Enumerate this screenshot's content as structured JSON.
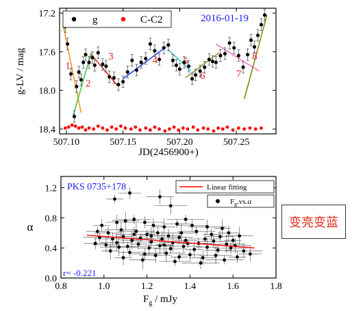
{
  "charts": [
    {
      "chart_data": {
        "type": "scatter",
        "xlabel": "JD(2456900+)",
        "ylabel": "g-LV / mag",
        "xlim": [
          507.094,
          507.285
        ],
        "ylim": [
          18.45,
          17.15
        ],
        "y_inverted": true,
        "xticks": [
          "507.10",
          "507.15",
          "507.20",
          "507.25"
        ],
        "xtick_values": [
          507.1,
          507.15,
          507.2,
          507.25
        ],
        "yticks": [
          "17.2",
          "17.6",
          "18.0",
          "18.4"
        ],
        "ytick_values": [
          17.2,
          17.6,
          18.0,
          18.4
        ],
        "annotation": "2016-01-19",
        "annotation_color": "#1a1aff",
        "legend": [
          {
            "name": "g",
            "color": "#000000"
          },
          {
            "name": "C-C2",
            "color": "#ff0000"
          }
        ],
        "series": [
          {
            "name": "g",
            "color": "#000000",
            "points": [
              [
                507.099,
                17.34
              ],
              [
                507.101,
                17.52
              ],
              [
                507.104,
                17.83
              ],
              [
                507.107,
                18.27
              ],
              [
                507.109,
                17.96
              ],
              [
                507.111,
                17.81
              ],
              [
                507.113,
                17.89
              ],
              [
                507.115,
                17.71
              ],
              [
                507.117,
                17.63
              ],
              [
                507.12,
                17.71
              ],
              [
                507.123,
                17.66
              ],
              [
                507.125,
                17.74
              ],
              [
                507.128,
                17.61
              ],
              [
                507.132,
                17.73
              ],
              [
                507.135,
                17.75
              ],
              [
                507.138,
                17.86
              ],
              [
                507.142,
                17.87
              ],
              [
                507.146,
                17.94
              ],
              [
                507.15,
                17.91
              ],
              [
                507.154,
                17.81
              ],
              [
                507.158,
                17.69
              ],
              [
                507.162,
                17.79
              ],
              [
                507.166,
                17.71
              ],
              [
                507.17,
                17.67
              ],
              [
                507.174,
                17.52
              ],
              [
                507.178,
                17.59
              ],
              [
                507.182,
                17.68
              ],
              [
                507.186,
                17.56
              ],
              [
                507.19,
                17.53
              ],
              [
                507.194,
                17.69
              ],
              [
                507.197,
                17.74
              ],
              [
                507.2,
                17.78
              ],
              [
                507.204,
                17.71
              ],
              [
                507.208,
                17.75
              ],
              [
                507.211,
                17.88
              ],
              [
                507.214,
                17.84
              ],
              [
                507.218,
                17.8
              ],
              [
                507.222,
                17.76
              ],
              [
                507.226,
                17.68
              ],
              [
                507.229,
                17.7
              ],
              [
                507.232,
                17.71
              ],
              [
                507.236,
                17.64
              ],
              [
                507.24,
                17.62
              ],
              [
                507.244,
                17.51
              ],
              [
                507.248,
                17.56
              ],
              [
                507.252,
                17.64
              ],
              [
                507.256,
                17.76
              ],
              [
                507.26,
                17.63
              ],
              [
                507.263,
                17.48
              ],
              [
                507.266,
                17.55
              ],
              [
                507.269,
                17.43
              ],
              [
                507.272,
                17.32
              ],
              [
                507.275,
                17.22
              ]
            ],
            "errors": 0.06
          },
          {
            "name": "C-C2",
            "color": "#ff0000",
            "points": [
              [
                507.099,
                18.39
              ],
              [
                507.102,
                18.38
              ],
              [
                507.105,
                18.36
              ],
              [
                507.108,
                18.37
              ],
              [
                507.111,
                18.39
              ],
              [
                507.114,
                18.38
              ],
              [
                507.117,
                18.41
              ],
              [
                507.12,
                18.39
              ],
              [
                507.124,
                18.4
              ],
              [
                507.128,
                18.37
              ],
              [
                507.132,
                18.39
              ],
              [
                507.136,
                18.41
              ],
              [
                507.14,
                18.38
              ],
              [
                507.144,
                18.4
              ],
              [
                507.148,
                18.37
              ],
              [
                507.152,
                18.39
              ],
              [
                507.157,
                18.4
              ],
              [
                507.161,
                18.38
              ],
              [
                507.165,
                18.41
              ],
              [
                507.17,
                18.39
              ],
              [
                507.174,
                18.41
              ],
              [
                507.178,
                18.38
              ],
              [
                507.182,
                18.4
              ],
              [
                507.187,
                18.42
              ],
              [
                507.191,
                18.4
              ],
              [
                507.195,
                18.38
              ],
              [
                507.199,
                18.41
              ],
              [
                507.203,
                18.39
              ],
              [
                507.207,
                18.4
              ],
              [
                507.212,
                18.38
              ],
              [
                507.216,
                18.41
              ],
              [
                507.221,
                18.39
              ],
              [
                507.225,
                18.4
              ],
              [
                507.23,
                18.42
              ],
              [
                507.234,
                18.39
              ],
              [
                507.238,
                18.4
              ],
              [
                507.242,
                18.38
              ],
              [
                507.247,
                18.41
              ],
              [
                507.252,
                18.39
              ],
              [
                507.257,
                18.4
              ],
              [
                507.262,
                18.39
              ],
              [
                507.267,
                18.4
              ],
              [
                507.272,
                18.39
              ]
            ]
          }
        ],
        "fit_segments": [
          {
            "label": "1",
            "color": "#ff8c1a",
            "x": [
              507.097,
              507.113
            ],
            "y": [
              17.32,
              18.23
            ]
          },
          {
            "label": "2",
            "color": "#33cc33",
            "x": [
              507.106,
              507.122
            ],
            "y": [
              18.26,
              17.61
            ]
          },
          {
            "label": "3",
            "color": "#e02020",
            "x": [
              507.122,
              507.145
            ],
            "y": [
              17.63,
              17.95
            ]
          },
          {
            "label": "4",
            "color": "#1a3cff",
            "x": [
              507.15,
              507.188
            ],
            "y": [
              17.88,
              17.55
            ]
          },
          {
            "label": "5",
            "color": "#22cccc",
            "x": [
              507.19,
              507.21
            ],
            "y": [
              17.58,
              17.8
            ]
          },
          {
            "label": "6",
            "color": "#9a9a30",
            "x": [
              507.205,
              507.235
            ],
            "y": [
              17.87,
              17.61
            ]
          },
          {
            "label": "7",
            "color": "#ff66cc",
            "x": [
              507.232,
              507.27
            ],
            "y": [
              17.52,
              17.8
            ]
          },
          {
            "label": "8",
            "color": "#808000",
            "x": [
              507.257,
              507.277
            ],
            "y": [
              18.09,
              17.22
            ]
          }
        ],
        "segment_label_color": "#e02020"
      }
    },
    {
      "chart_data": {
        "type": "scatter",
        "xlabel_main": "F",
        "xlabel_sub": "g",
        "xlabel_unit": " / mJy",
        "ylabel": "α",
        "xlim": [
          0.8,
          1.8
        ],
        "ylim": [
          0.0,
          1.35
        ],
        "xticks": [
          "0.8",
          "1.0",
          "1.2",
          "1.4",
          "1.6",
          "1.8"
        ],
        "xtick_values": [
          0.8,
          1.0,
          1.2,
          1.4,
          1.6,
          1.8
        ],
        "yticks": [
          "0.0",
          "0.4",
          "0.8",
          "1.2"
        ],
        "ytick_values": [
          0.0,
          0.4,
          0.8,
          1.2
        ],
        "source_label": "PKS 0735+178",
        "source_color": "#1a1aff",
        "correlation": "r= -0.221",
        "correlation_color": "#1a1aff",
        "legend": [
          {
            "name": "Linear fitting",
            "color": "#ff0000",
            "kind": "line"
          },
          {
            "name_main": "F",
            "name_sub": "g",
            "name_rest": ".vs.α",
            "color": "#000000",
            "kind": "point"
          }
        ],
        "fit_line": {
          "x": [
            0.92,
            1.7
          ],
          "y": [
            0.57,
            0.4
          ]
        },
        "series": [
          {
            "name": "Fg.vs.α",
            "points": [
              [
                1.05,
                1.05
              ],
              [
                1.12,
                1.13
              ],
              [
                1.26,
                1.08
              ],
              [
                1.31,
                0.96
              ],
              [
                1.38,
                0.78
              ],
              [
                0.99,
                0.7
              ],
              [
                1.06,
                0.74
              ],
              [
                1.1,
                0.76
              ],
              [
                1.14,
                0.78
              ],
              [
                1.19,
                0.74
              ],
              [
                1.23,
                0.7
              ],
              [
                1.28,
                0.68
              ],
              [
                1.34,
                0.72
              ],
              [
                1.41,
                0.7
              ],
              [
                1.48,
                0.68
              ],
              [
                1.55,
                0.66
              ],
              [
                0.97,
                0.62
              ],
              [
                1.02,
                0.6
              ],
              [
                1.08,
                0.64
              ],
              [
                1.15,
                0.62
              ],
              [
                1.2,
                0.58
              ],
              [
                1.25,
                0.6
              ],
              [
                1.3,
                0.56
              ],
              [
                1.36,
                0.6
              ],
              [
                1.43,
                0.62
              ],
              [
                1.5,
                0.58
              ],
              [
                1.58,
                0.6
              ],
              [
                1.63,
                0.56
              ],
              [
                0.98,
                0.54
              ],
              [
                1.04,
                0.52
              ],
              [
                1.09,
                0.55
              ],
              [
                1.13,
                0.5
              ],
              [
                1.17,
                0.53
              ],
              [
                1.22,
                0.48
              ],
              [
                1.27,
                0.52
              ],
              [
                1.32,
                0.47
              ],
              [
                1.38,
                0.5
              ],
              [
                1.44,
                0.46
              ],
              [
                1.51,
                0.49
              ],
              [
                1.57,
                0.45
              ],
              [
                1.6,
                0.5
              ],
              [
                0.96,
                0.46
              ],
              [
                1.01,
                0.44
              ],
              [
                1.06,
                0.47
              ],
              [
                1.11,
                0.42
              ],
              [
                1.16,
                0.45
              ],
              [
                1.21,
                0.4
              ],
              [
                1.26,
                0.43
              ],
              [
                1.31,
                0.39
              ],
              [
                1.37,
                0.42
              ],
              [
                1.42,
                0.38
              ],
              [
                1.48,
                0.41
              ],
              [
                1.53,
                0.37
              ],
              [
                1.59,
                0.4
              ],
              [
                1.65,
                0.36
              ],
              [
                1.03,
                0.36
              ],
              [
                1.12,
                0.34
              ],
              [
                1.19,
                0.32
              ],
              [
                1.24,
                0.3
              ],
              [
                1.29,
                0.33
              ],
              [
                1.35,
                0.28
              ],
              [
                1.4,
                0.31
              ],
              [
                1.46,
                0.27
              ],
              [
                1.52,
                0.3
              ],
              [
                1.56,
                0.24
              ],
              [
                1.62,
                0.28
              ],
              [
                1.68,
                0.32
              ],
              [
                1.18,
                0.24
              ],
              [
                1.33,
                0.22
              ],
              [
                1.45,
                0.2
              ],
              [
                1.09,
                0.27
              ],
              [
                1.22,
                0.56
              ],
              [
                1.35,
                0.54
              ],
              [
                1.47,
                0.52
              ],
              [
                1.14,
                0.58
              ],
              [
                1.28,
                0.44
              ],
              [
                1.39,
                0.46
              ],
              [
                1.54,
                0.55
              ],
              [
                1.61,
                0.43
              ],
              [
                1.07,
                0.41
              ]
            ]
          }
        ]
      }
    }
  ],
  "annotation_box": {
    "text": "变亮变蓝",
    "color": "#e0301e"
  }
}
